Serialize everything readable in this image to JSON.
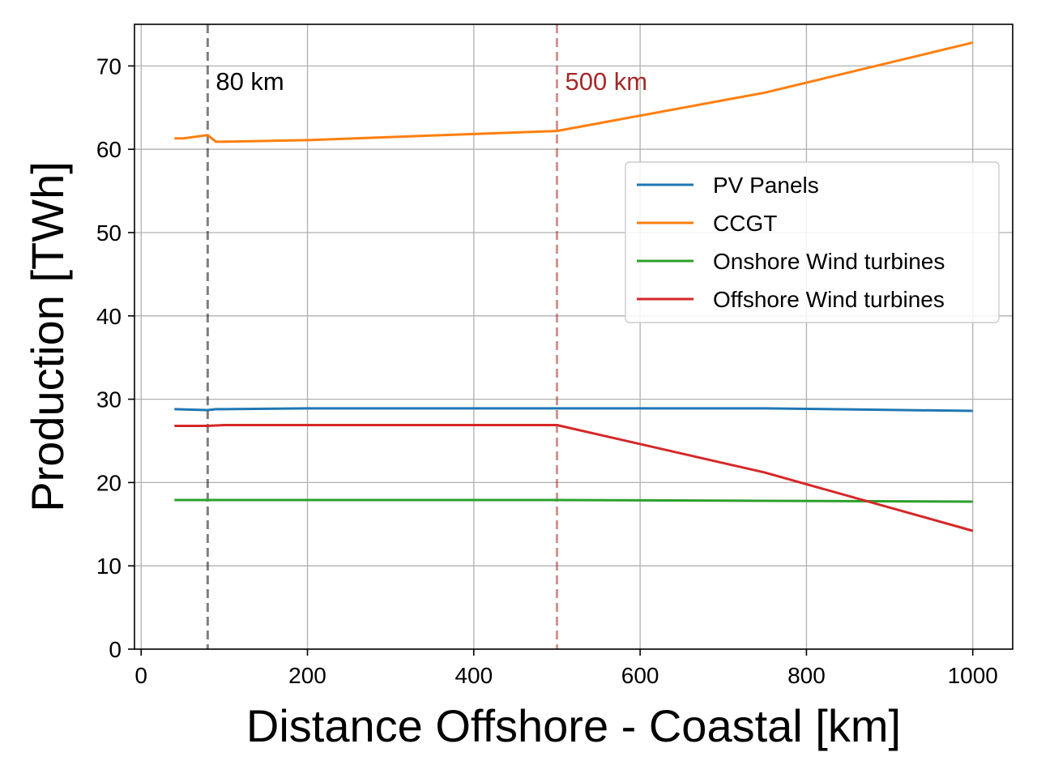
{
  "chart_data": {
    "type": "line",
    "xlabel": "Distance Offshore - Coastal [km]",
    "ylabel": "Production [TWh]",
    "xlim": [
      -8,
      1048
    ],
    "ylim": [
      0,
      75
    ],
    "xticks": [
      0,
      200,
      400,
      600,
      800,
      1000
    ],
    "yticks": [
      0,
      10,
      20,
      30,
      40,
      50,
      60,
      70
    ],
    "grid": true,
    "legend": "center-right",
    "series": [
      {
        "name": "PV Panels",
        "color": "#1f77b4",
        "x": [
          40,
          80,
          90,
          100,
          200,
          500,
          750,
          1000
        ],
        "y": [
          28.8,
          28.7,
          28.8,
          28.8,
          28.9,
          28.9,
          28.9,
          28.6
        ]
      },
      {
        "name": "CCGT",
        "color": "#ff7f0e",
        "x": [
          40,
          50,
          80,
          90,
          100,
          200,
          500,
          750,
          1000
        ],
        "y": [
          61.3,
          61.3,
          61.7,
          60.9,
          60.9,
          61.1,
          62.2,
          66.8,
          72.8
        ]
      },
      {
        "name": "Onshore Wind turbines",
        "color": "#2ca02c",
        "x": [
          40,
          80,
          100,
          200,
          500,
          750,
          1000
        ],
        "y": [
          17.9,
          17.9,
          17.9,
          17.9,
          17.9,
          17.8,
          17.7
        ]
      },
      {
        "name": "Offshore Wind turbines",
        "color": "#d62728",
        "x": [
          40,
          80,
          100,
          200,
          500,
          750,
          1000
        ],
        "y": [
          26.8,
          26.8,
          26.9,
          26.9,
          26.9,
          21.2,
          14.2
        ]
      }
    ],
    "vlines": [
      {
        "x": 80,
        "label": "80 km",
        "color": "#000000",
        "opacity": 0.5
      },
      {
        "x": 500,
        "label": "500 km",
        "color": "#a52a2a",
        "opacity": 0.5,
        "label_color": "#a52a2a"
      }
    ]
  }
}
